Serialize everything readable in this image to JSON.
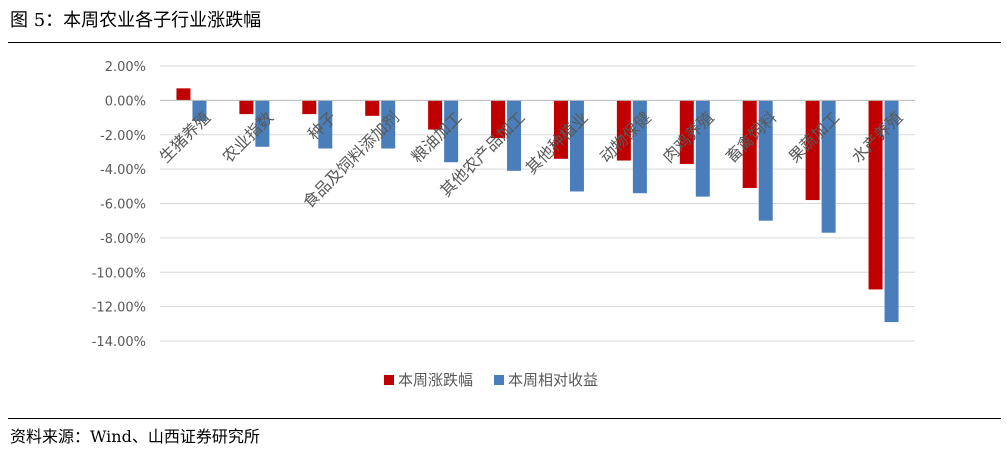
{
  "figure": {
    "title": "图 5：本周农业各子行业涨跌幅",
    "source": "资料来源：Wind、山西证券研究所"
  },
  "chart_data": {
    "type": "bar",
    "categories": [
      "生猪养殖",
      "农业指数",
      "种子",
      "食品及饲料添加剂",
      "粮油加工",
      "其他农产品加工",
      "其他种植业",
      "动物保健",
      "肉鸡养殖",
      "畜禽饲料",
      "果蔬加工",
      "水产养殖"
    ],
    "series": [
      {
        "name": "本周涨跌幅",
        "color": "#c00000",
        "values": [
          0.7,
          -0.8,
          -0.8,
          -0.9,
          -1.7,
          -2.2,
          -3.4,
          -3.5,
          -3.7,
          -5.1,
          -5.8,
          -11.0
        ]
      },
      {
        "name": "本周相对收益",
        "color": "#4a7ebb",
        "values": [
          -1.2,
          -2.7,
          -2.8,
          -2.8,
          -3.6,
          -4.1,
          -5.3,
          -5.4,
          -5.6,
          -7.0,
          -7.7,
          -12.9
        ]
      }
    ],
    "ylim": [
      -14,
      2
    ],
    "yticks": [
      "2.00%",
      "0.00%",
      "-2.00%",
      "-4.00%",
      "-6.00%",
      "-8.00%",
      "-10.00%",
      "-12.00%",
      "-14.00%"
    ],
    "grid": true,
    "legend_position": "bottom"
  }
}
